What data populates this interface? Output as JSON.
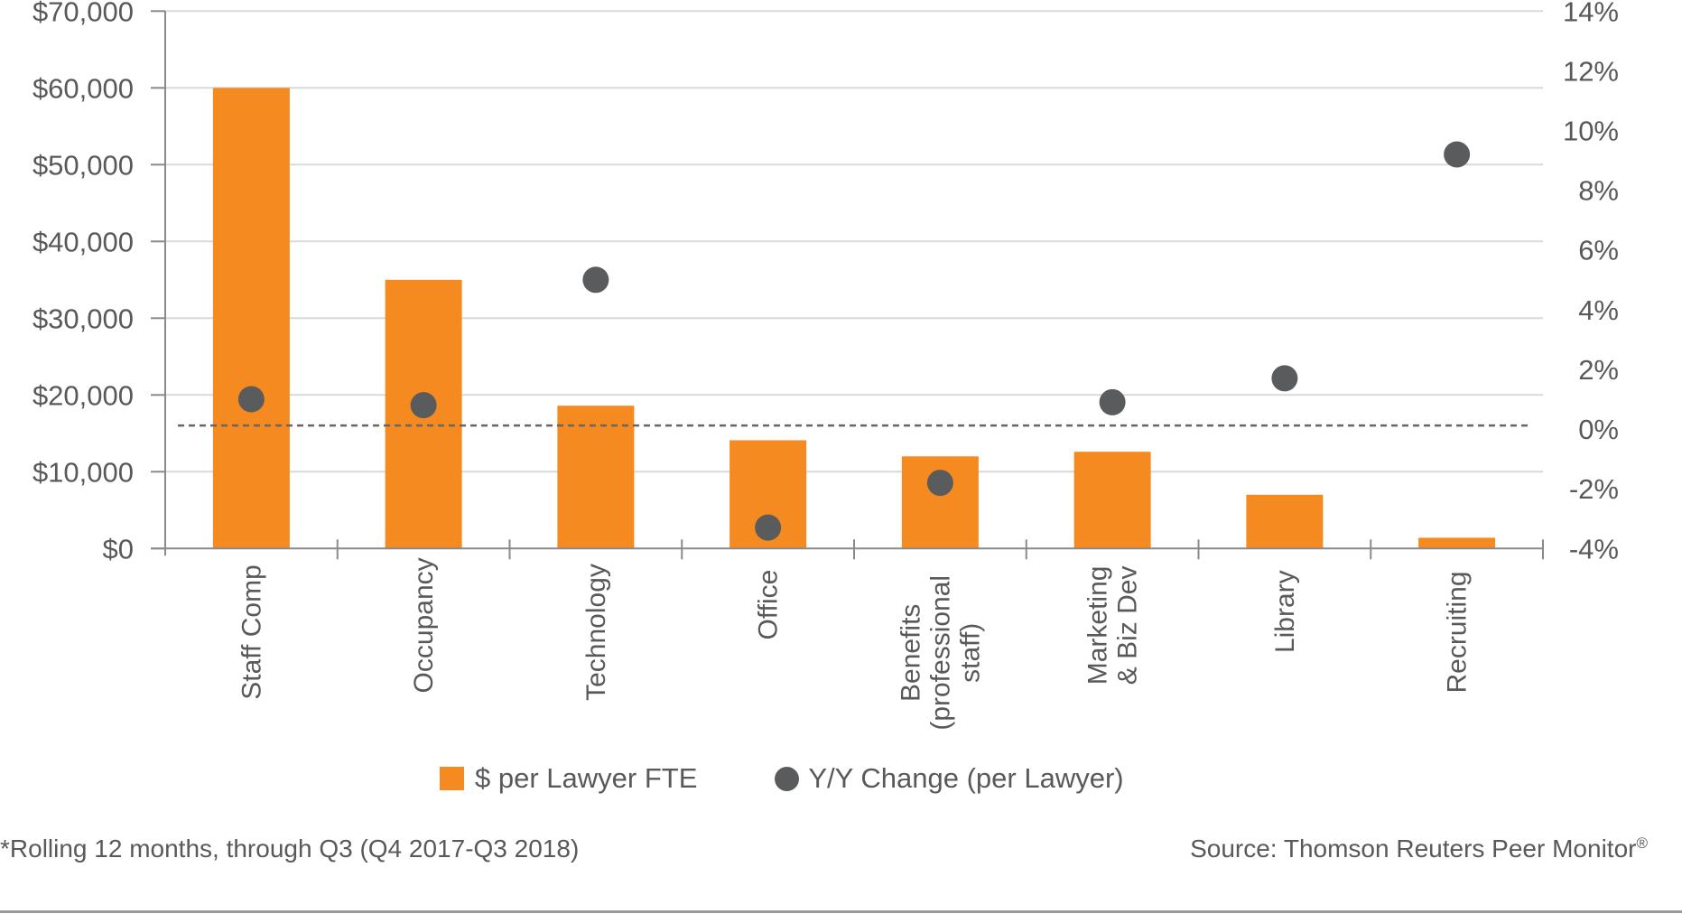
{
  "chart_data": {
    "type": "bar",
    "title": "",
    "categories": [
      [
        "Staff Comp"
      ],
      [
        "Occupancy"
      ],
      [
        "Technology"
      ],
      [
        "Office"
      ],
      [
        "Benefits",
        "(professional",
        "staff)"
      ],
      [
        "Marketing",
        "& Biz Dev"
      ],
      [
        "Library"
      ],
      [
        "Recruiting"
      ]
    ],
    "series": [
      {
        "name": "$ per Lawyer FTE",
        "type": "bar",
        "axis": "left",
        "color": "#f58a21",
        "values": [
          60000,
          35000,
          18600,
          14100,
          12000,
          12600,
          7000,
          1400
        ]
      },
      {
        "name": "Y/Y Change (per Lawyer)",
        "type": "scatter",
        "axis": "right",
        "color": "#5a5b5d",
        "values": [
          1.0,
          0.8,
          5.0,
          -3.3,
          -1.8,
          0.9,
          1.7,
          9.2
        ]
      }
    ],
    "left_axis": {
      "ylim": [
        0,
        70000
      ],
      "ticks": [
        0,
        10000,
        20000,
        30000,
        40000,
        50000,
        60000,
        70000
      ],
      "tick_labels": [
        "$0",
        "$10,000",
        "$20,000",
        "$30,000",
        "$40,000",
        "$50,000",
        "$60,000",
        "$70,000"
      ]
    },
    "right_axis": {
      "ylim": [
        -4,
        14
      ],
      "ticks": [
        -4,
        -2,
        0,
        2,
        4,
        6,
        8,
        10,
        12,
        14
      ],
      "tick_labels": [
        "-4%",
        "-2%",
        "0%",
        "2%",
        "4%",
        "6%",
        "8%",
        "10%",
        "12%",
        "14%"
      ]
    },
    "reference_line": {
      "axis": "right",
      "value": 0,
      "style": "dashed",
      "color": "#666666"
    },
    "grid": true,
    "legend_position": "bottom-center",
    "xlabel": "",
    "ylabel": ""
  },
  "legend": {
    "bar_label": "$ per Lawyer FTE",
    "dot_label": "Y/Y Change (per Lawyer)"
  },
  "footer": {
    "footnote": "*Rolling 12 months, through Q3 (Q4 2017-Q3 2018)",
    "source": "Source: Thomson Reuters Peer Monitor",
    "source_mark": "®"
  },
  "colors": {
    "bar": "#f58a21",
    "dot": "#5a5b5d",
    "grid": "#d9d9d9",
    "axis": "#8a8a8a",
    "text": "#58595b"
  }
}
